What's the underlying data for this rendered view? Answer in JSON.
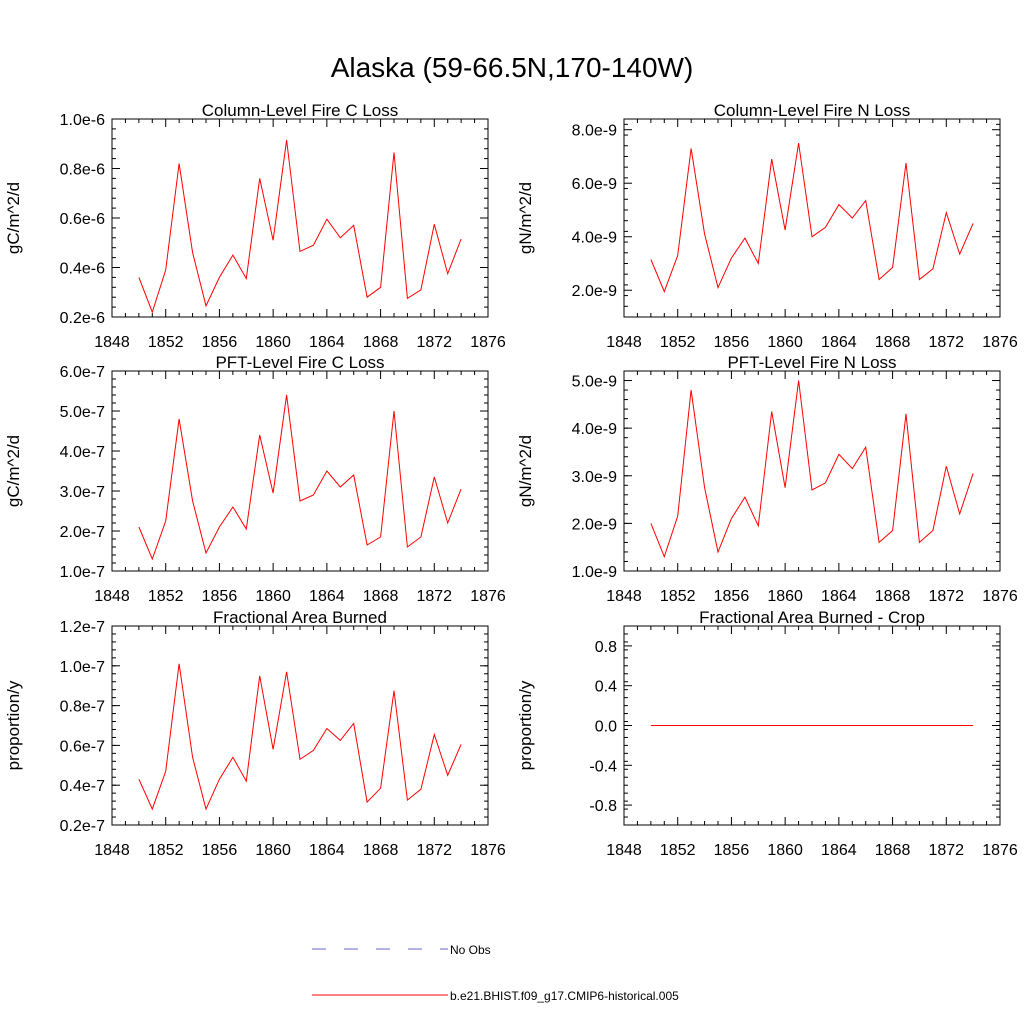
{
  "page_title": "Alaska (59-66.5N,170-140W)",
  "colors": {
    "series": "#ff0000",
    "no_obs": "#6666cc",
    "axis": "#000000"
  },
  "legend": [
    {
      "label": "No Obs",
      "style": "dashed",
      "color": "#6666cc"
    },
    {
      "label": "b.e21.BHIST.f09_g17.CMIP6-historical.005",
      "style": "solid",
      "color": "#ff0000"
    }
  ],
  "chart_data": [
    {
      "type": "line",
      "title": "Column-Level Fire C Loss",
      "ylabel": "gC/m^2/d",
      "xlim": [
        1848,
        1876
      ],
      "ylim": [
        2e-07,
        1e-06
      ],
      "xticks": [
        1848,
        1852,
        1856,
        1860,
        1864,
        1868,
        1872,
        1876
      ],
      "yticks": [
        2e-07,
        4e-07,
        6e-07,
        8e-07,
        1e-06
      ],
      "ytick_labels": [
        "0.2e-6",
        "0.4e-6",
        "0.6e-6",
        "0.8e-6",
        "1.0e-6"
      ],
      "x": [
        1850,
        1851,
        1852,
        1853,
        1854,
        1855,
        1856,
        1857,
        1858,
        1859,
        1860,
        1861,
        1862,
        1863,
        1864,
        1865,
        1866,
        1867,
        1868,
        1869,
        1870,
        1871,
        1872,
        1873,
        1874
      ],
      "series": [
        {
          "values": [
            3.6e-07,
            2.2e-07,
            3.9e-07,
            8.2e-07,
            4.6e-07,
            2.45e-07,
            3.6e-07,
            4.5e-07,
            3.55e-07,
            7.6e-07,
            5.1e-07,
            9.15e-07,
            4.65e-07,
            4.9e-07,
            5.95e-07,
            5.2e-07,
            5.7e-07,
            2.8e-07,
            3.2e-07,
            8.65e-07,
            2.75e-07,
            3.1e-07,
            5.75e-07,
            3.75e-07,
            5.15e-07
          ]
        }
      ]
    },
    {
      "type": "line",
      "title": "Column-Level Fire N Loss",
      "ylabel": "gN/m^2/d",
      "xlim": [
        1848,
        1876
      ],
      "ylim": [
        1e-09,
        8.4e-09
      ],
      "xticks": [
        1848,
        1852,
        1856,
        1860,
        1864,
        1868,
        1872,
        1876
      ],
      "yticks": [
        2e-09,
        4e-09,
        6e-09,
        8e-09
      ],
      "ytick_labels": [
        "2.0e-9",
        "4.0e-9",
        "6.0e-9",
        "8.0e-9"
      ],
      "x": [
        1850,
        1851,
        1852,
        1853,
        1854,
        1855,
        1856,
        1857,
        1858,
        1859,
        1860,
        1861,
        1862,
        1863,
        1864,
        1865,
        1866,
        1867,
        1868,
        1869,
        1870,
        1871,
        1872,
        1873,
        1874
      ],
      "series": [
        {
          "values": [
            3.15e-09,
            1.95e-09,
            3.3e-09,
            7.3e-09,
            4.1e-09,
            2.1e-09,
            3.2e-09,
            3.95e-09,
            3e-09,
            6.9e-09,
            4.25e-09,
            7.5e-09,
            4e-09,
            4.35e-09,
            5.2e-09,
            4.7e-09,
            5.35e-09,
            2.4e-09,
            2.85e-09,
            6.75e-09,
            2.4e-09,
            2.8e-09,
            4.9e-09,
            3.35e-09,
            4.5e-09
          ]
        }
      ]
    },
    {
      "type": "line",
      "title": "PFT-Level Fire C Loss",
      "ylabel": "gC/m^2/d",
      "xlim": [
        1848,
        1876
      ],
      "ylim": [
        1e-07,
        6e-07
      ],
      "xticks": [
        1848,
        1852,
        1856,
        1860,
        1864,
        1868,
        1872,
        1876
      ],
      "yticks": [
        1e-07,
        2e-07,
        3e-07,
        4e-07,
        5e-07,
        6e-07
      ],
      "ytick_labels": [
        "1.0e-7",
        "2.0e-7",
        "3.0e-7",
        "4.0e-7",
        "5.0e-7",
        "6.0e-7"
      ],
      "x": [
        1850,
        1851,
        1852,
        1853,
        1854,
        1855,
        1856,
        1857,
        1858,
        1859,
        1860,
        1861,
        1862,
        1863,
        1864,
        1865,
        1866,
        1867,
        1868,
        1869,
        1870,
        1871,
        1872,
        1873,
        1874
      ],
      "series": [
        {
          "values": [
            2.1e-07,
            1.3e-07,
            2.25e-07,
            4.8e-07,
            2.75e-07,
            1.45e-07,
            2.1e-07,
            2.6e-07,
            2.05e-07,
            4.4e-07,
            2.95e-07,
            5.4e-07,
            2.75e-07,
            2.9e-07,
            3.5e-07,
            3.1e-07,
            3.4e-07,
            1.65e-07,
            1.85e-07,
            5e-07,
            1.6e-07,
            1.85e-07,
            3.35e-07,
            2.2e-07,
            3.05e-07
          ]
        }
      ]
    },
    {
      "type": "line",
      "title": "PFT-Level Fire N Loss",
      "ylabel": "gN/m^2/d",
      "xlim": [
        1848,
        1876
      ],
      "ylim": [
        1e-09,
        5.2e-09
      ],
      "xticks": [
        1848,
        1852,
        1856,
        1860,
        1864,
        1868,
        1872,
        1876
      ],
      "yticks": [
        1e-09,
        2e-09,
        3e-09,
        4e-09,
        5e-09
      ],
      "ytick_labels": [
        "1.0e-9",
        "2.0e-9",
        "3.0e-9",
        "4.0e-9",
        "5.0e-9"
      ],
      "x": [
        1850,
        1851,
        1852,
        1853,
        1854,
        1855,
        1856,
        1857,
        1858,
        1859,
        1860,
        1861,
        1862,
        1863,
        1864,
        1865,
        1866,
        1867,
        1868,
        1869,
        1870,
        1871,
        1872,
        1873,
        1874
      ],
      "series": [
        {
          "values": [
            2e-09,
            1.3e-09,
            2.15e-09,
            4.8e-09,
            2.75e-09,
            1.4e-09,
            2.1e-09,
            2.55e-09,
            1.95e-09,
            4.35e-09,
            2.75e-09,
            5e-09,
            2.7e-09,
            2.85e-09,
            3.45e-09,
            3.15e-09,
            3.6e-09,
            1.6e-09,
            1.85e-09,
            4.3e-09,
            1.6e-09,
            1.85e-09,
            3.2e-09,
            2.2e-09,
            3.05e-09
          ]
        }
      ]
    },
    {
      "type": "line",
      "title": "Fractional Area Burned",
      "ylabel": "proportion/y",
      "xlim": [
        1848,
        1876
      ],
      "ylim": [
        2e-08,
        1.2e-07
      ],
      "xticks": [
        1848,
        1852,
        1856,
        1860,
        1864,
        1868,
        1872,
        1876
      ],
      "yticks": [
        2e-08,
        4e-08,
        6e-08,
        8e-08,
        1e-07,
        1.2e-07
      ],
      "ytick_labels": [
        "0.2e-7",
        "0.4e-7",
        "0.6e-7",
        "0.8e-7",
        "1.0e-7",
        "1.2e-7"
      ],
      "x": [
        1850,
        1851,
        1852,
        1853,
        1854,
        1855,
        1856,
        1857,
        1858,
        1859,
        1860,
        1861,
        1862,
        1863,
        1864,
        1865,
        1866,
        1867,
        1868,
        1869,
        1870,
        1871,
        1872,
        1873,
        1874
      ],
      "series": [
        {
          "values": [
            4.3e-08,
            2.8e-08,
            4.7e-08,
            1.01e-07,
            5.4e-08,
            2.8e-08,
            4.3e-08,
            5.4e-08,
            4.2e-08,
            9.5e-08,
            5.8e-08,
            9.7e-08,
            5.3e-08,
            5.75e-08,
            6.85e-08,
            6.25e-08,
            7.1e-08,
            3.15e-08,
            3.85e-08,
            8.75e-08,
            3.25e-08,
            3.8e-08,
            6.55e-08,
            4.5e-08,
            6.05e-08
          ]
        }
      ]
    },
    {
      "type": "line",
      "title": "Fractional Area Burned - Crop",
      "ylabel": "proportion/y",
      "xlim": [
        1848,
        1876
      ],
      "ylim": [
        -1.0,
        1.0
      ],
      "xticks": [
        1848,
        1852,
        1856,
        1860,
        1864,
        1868,
        1872,
        1876
      ],
      "yticks": [
        -0.8,
        -0.4,
        0.0,
        0.4,
        0.8
      ],
      "ytick_labels": [
        "-0.8",
        "-0.4",
        "0.0",
        "0.4",
        "0.8"
      ],
      "x": [
        1850,
        1851,
        1852,
        1853,
        1854,
        1855,
        1856,
        1857,
        1858,
        1859,
        1860,
        1861,
        1862,
        1863,
        1864,
        1865,
        1866,
        1867,
        1868,
        1869,
        1870,
        1871,
        1872,
        1873,
        1874
      ],
      "series": [
        {
          "values": [
            0,
            0,
            0,
            0,
            0,
            0,
            0,
            0,
            0,
            0,
            0,
            0,
            0,
            0,
            0,
            0,
            0,
            0,
            0,
            0,
            0,
            0,
            0,
            0,
            0
          ]
        }
      ]
    }
  ]
}
